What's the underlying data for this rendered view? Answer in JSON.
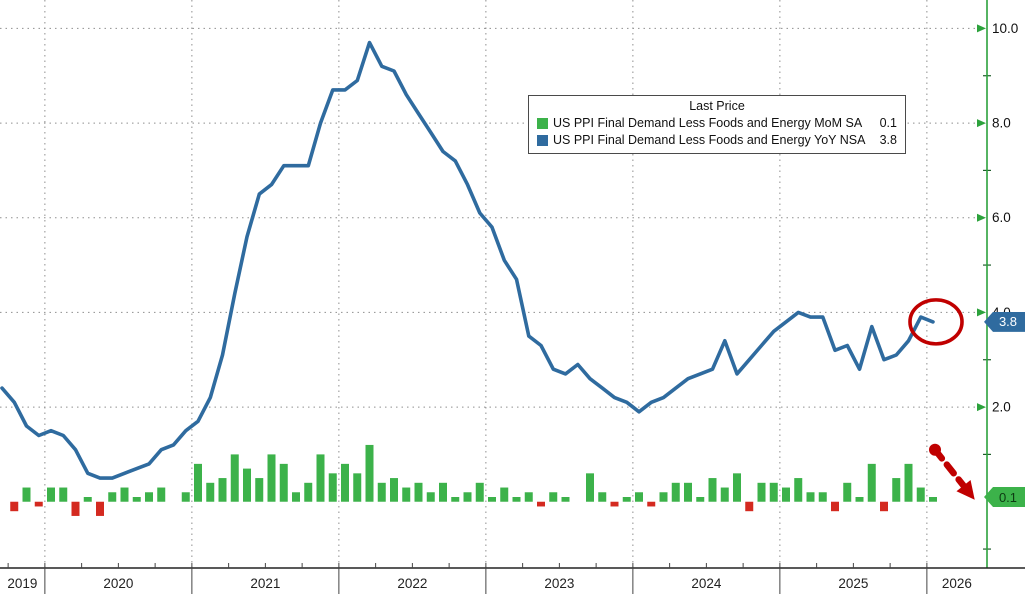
{
  "chart_data": {
    "type": "combo",
    "legend": {
      "title": "Last Price",
      "items": [
        {
          "label": "US PPI Final Demand Less Foods and Energy MoM SA",
          "value": "0.1",
          "color": "#3cb24a"
        },
        {
          "label": "US PPI Final Demand Less Foods and Energy YoY NSA",
          "value": "3.8",
          "color": "#2f6b9f"
        }
      ]
    },
    "x_months": [
      "2019-09",
      "2019-10",
      "2019-11",
      "2019-12",
      "2020-01",
      "2020-02",
      "2020-03",
      "2020-04",
      "2020-05",
      "2020-06",
      "2020-07",
      "2020-08",
      "2020-09",
      "2020-10",
      "2020-11",
      "2020-12",
      "2021-01",
      "2021-02",
      "2021-03",
      "2021-04",
      "2021-05",
      "2021-06",
      "2021-07",
      "2021-08",
      "2021-09",
      "2021-10",
      "2021-11",
      "2021-12",
      "2022-01",
      "2022-02",
      "2022-03",
      "2022-04",
      "2022-05",
      "2022-06",
      "2022-07",
      "2022-08",
      "2022-09",
      "2022-10",
      "2022-11",
      "2022-12",
      "2023-01",
      "2023-02",
      "2023-03",
      "2023-04",
      "2023-05",
      "2023-06",
      "2023-07",
      "2023-08",
      "2023-09",
      "2023-10",
      "2023-11",
      "2023-12",
      "2024-01",
      "2024-02",
      "2024-03",
      "2024-04",
      "2024-05",
      "2024-06",
      "2024-07",
      "2024-08",
      "2024-09",
      "2024-10",
      "2024-11",
      "2024-12",
      "2025-01",
      "2025-02",
      "2025-03",
      "2025-04",
      "2025-05",
      "2025-06",
      "2025-07",
      "2025-08",
      "2025-09",
      "2025-10",
      "2025-11",
      "2025-12",
      "2026-01"
    ],
    "series": [
      {
        "name": "US PPI Final Demand Less Foods and Energy MoM SA",
        "type": "bar",
        "last_price": 0.1,
        "values": [
          null,
          -0.2,
          0.3,
          -0.1,
          0.3,
          0.3,
          -0.3,
          0.1,
          -0.3,
          0.2,
          0.3,
          0.1,
          0.2,
          0.3,
          0.0,
          0.2,
          0.8,
          0.4,
          0.5,
          1.0,
          0.7,
          0.5,
          1.0,
          0.8,
          0.2,
          0.4,
          1.0,
          0.6,
          0.8,
          0.6,
          1.2,
          0.4,
          0.5,
          0.3,
          0.4,
          0.2,
          0.4,
          0.1,
          0.2,
          0.4,
          0.1,
          0.3,
          0.1,
          0.2,
          -0.1,
          0.2,
          0.1,
          0.0,
          0.6,
          0.2,
          -0.1,
          0.1,
          0.2,
          -0.1,
          0.2,
          0.4,
          0.4,
          0.1,
          0.5,
          0.3,
          0.6,
          -0.2,
          0.4,
          0.4,
          0.3,
          0.5,
          0.2,
          0.2,
          -0.2,
          0.4,
          0.1,
          0.8,
          -0.2,
          0.5,
          0.8,
          0.3,
          0.1
        ]
      },
      {
        "name": "US PPI Final Demand Less Foods and Energy YoY NSA",
        "type": "line",
        "last_price": 3.8,
        "values": [
          2.4,
          2.1,
          1.6,
          1.4,
          1.5,
          1.4,
          1.1,
          0.6,
          0.5,
          0.5,
          0.6,
          0.7,
          0.8,
          1.1,
          1.2,
          1.5,
          1.7,
          2.2,
          3.1,
          4.4,
          5.6,
          6.5,
          6.7,
          7.1,
          7.1,
          7.1,
          8.0,
          8.7,
          8.7,
          8.9,
          9.7,
          9.2,
          9.1,
          8.6,
          8.2,
          7.8,
          7.4,
          7.2,
          6.7,
          6.1,
          5.8,
          5.1,
          4.7,
          3.5,
          3.3,
          2.8,
          2.7,
          2.9,
          2.6,
          2.4,
          2.2,
          2.1,
          1.9,
          2.1,
          2.2,
          2.4,
          2.6,
          2.7,
          2.8,
          3.4,
          2.7,
          3.0,
          3.3,
          3.6,
          3.8,
          4.0,
          3.9,
          3.9,
          3.2,
          3.3,
          2.8,
          3.7,
          3.0,
          3.1,
          3.4,
          3.9,
          3.8
        ]
      }
    ],
    "y_axis": {
      "side": "right",
      "ticks": [
        2,
        4,
        6,
        8,
        10
      ],
      "tick_labels": [
        "2.0",
        "4.0",
        "6.0",
        "8.0",
        "10.0"
      ],
      "minor_ticks": [
        -1,
        1,
        3,
        5,
        7,
        9
      ],
      "ylim": [
        -1.4,
        10.6
      ],
      "grid": "dotted"
    },
    "x_axis": {
      "year_labels": [
        "2019",
        "2020",
        "2021",
        "2022",
        "2023",
        "2024",
        "2025",
        "2026"
      ],
      "grid": "dotted"
    },
    "last_price_badges": [
      {
        "id": "yoy",
        "value": "3.8",
        "numeric": 3.8,
        "bg": "#2f6b9f",
        "text_color": "#ffffff"
      },
      {
        "id": "mom",
        "value": "0.1",
        "numeric": 0.1,
        "bg": "#3cb24a",
        "text_color": "#0d3a12"
      }
    ],
    "annotations": {
      "circle": {
        "target": "last YoY data point",
        "value": 3.8,
        "color": "#c00000"
      },
      "arrow": {
        "target": "last MoM bar / 0.1 badge",
        "direction": "down-right",
        "color": "#c00000",
        "style": "dashed"
      }
    },
    "colors": {
      "line": "#2f6b9f",
      "bar_positive": "#3cb24a",
      "bar_negative": "#d42a20",
      "axis_green": "#2ca23c",
      "grid": "#8f8f8f",
      "axis_black": "#222222",
      "background": "#ffffff"
    }
  }
}
